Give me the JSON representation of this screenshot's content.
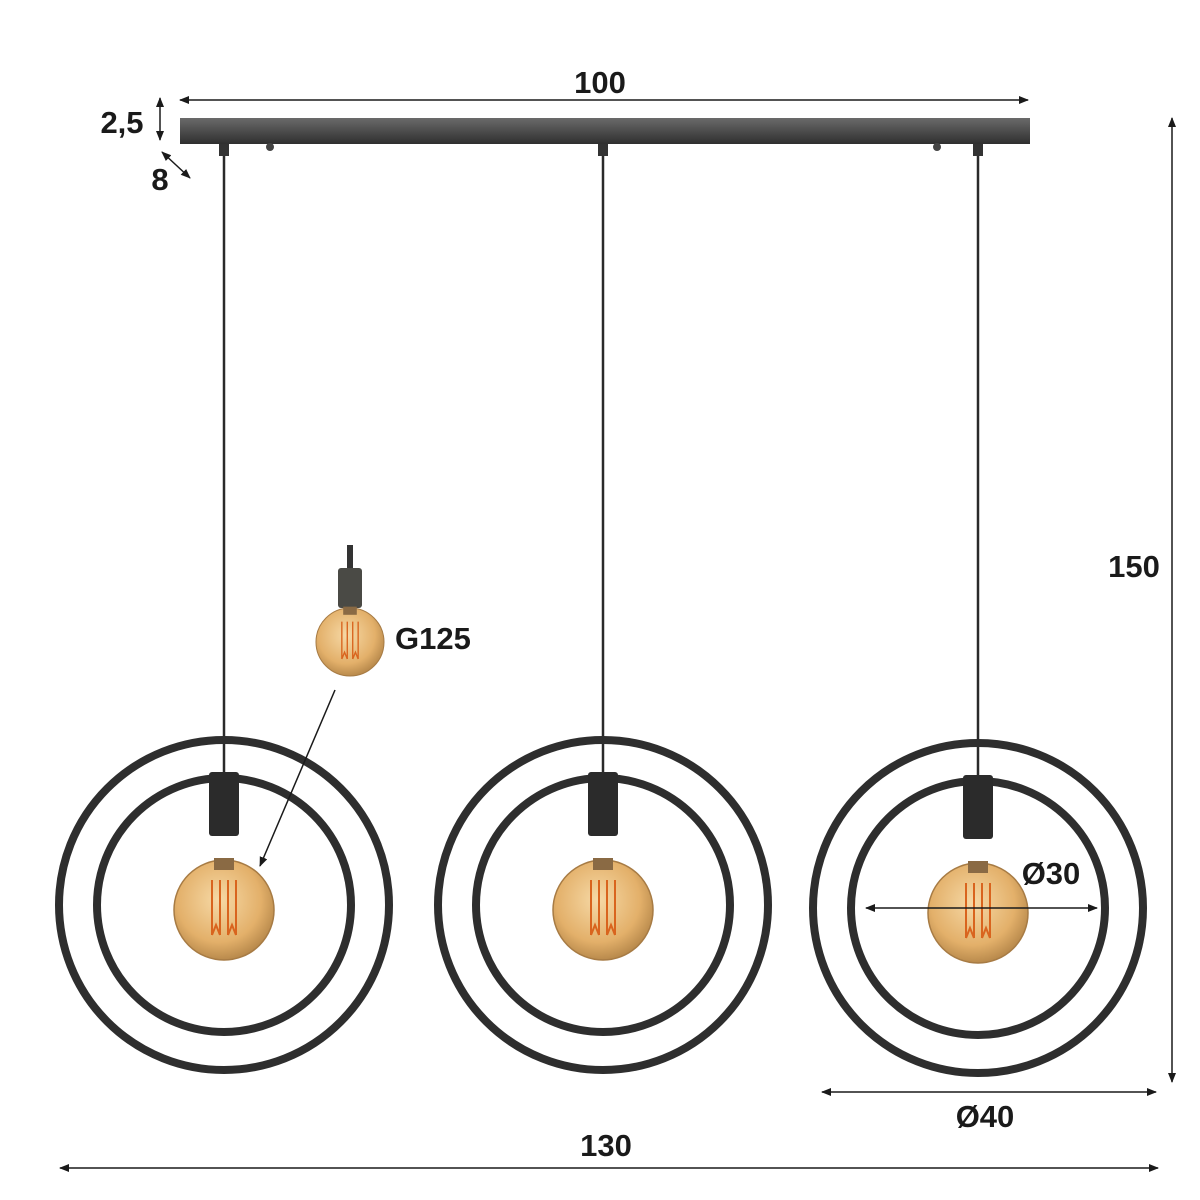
{
  "dimensions": {
    "bar_length": "100",
    "bar_height": "2,5",
    "bar_depth": "8",
    "total_height": "150",
    "total_width": "130",
    "outer_ring_diameter": "Ø40",
    "inner_ring_diameter": "Ø30"
  },
  "bulb": {
    "type_label": "G125"
  },
  "colors": {
    "metal": "#2e2e2e",
    "bar": "#4a4a4a",
    "bulb_glass": "#e8b872",
    "filament": "#d9641e",
    "dimension_line": "#1a1a1a"
  }
}
